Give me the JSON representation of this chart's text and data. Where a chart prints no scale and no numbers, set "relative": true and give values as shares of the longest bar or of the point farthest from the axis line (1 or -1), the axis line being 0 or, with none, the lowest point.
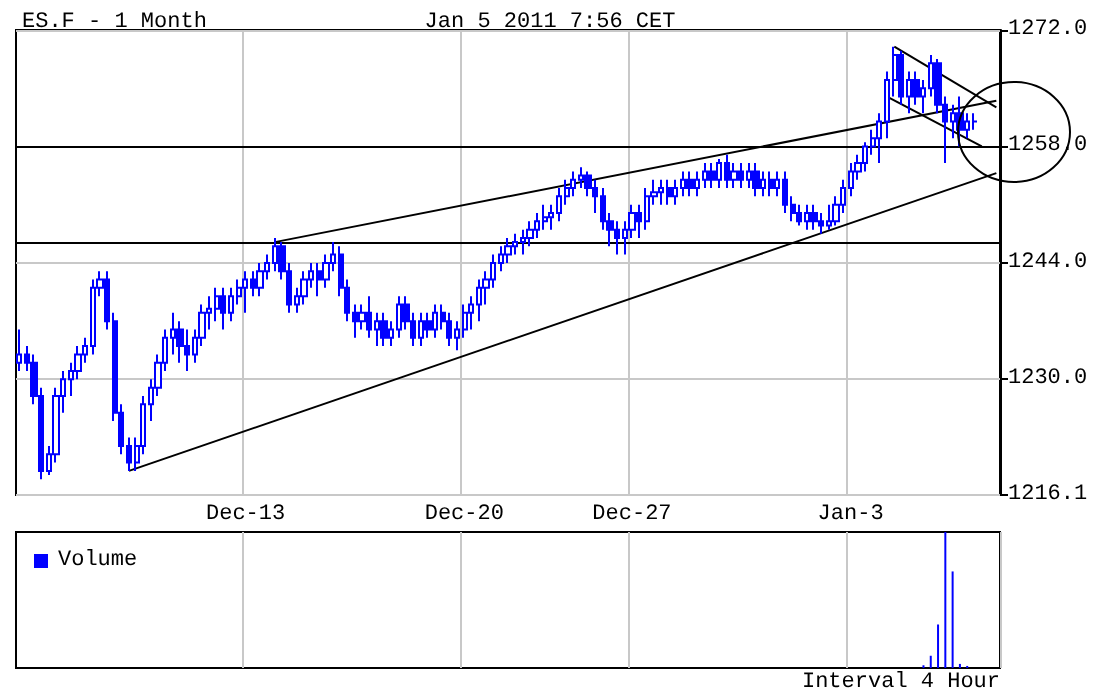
{
  "chart_data": [
    {
      "type": "candlestick",
      "title": "ES.F - 1 Month",
      "subtitle": "Jan 5 2011 7:56 CET",
      "categories": [
        null,
        null,
        null,
        null,
        null,
        null,
        null,
        null,
        null,
        null,
        null,
        null,
        null,
        null,
        null,
        null,
        null,
        null,
        null,
        null,
        null,
        null,
        null,
        null,
        null,
        null,
        null,
        null,
        null,
        null,
        null,
        null,
        null,
        null,
        null,
        null,
        null,
        null,
        null,
        null,
        null,
        null,
        null,
        null,
        null,
        null,
        null,
        null,
        null,
        null,
        null,
        null,
        null,
        null,
        null,
        null,
        null,
        null,
        null,
        null,
        null,
        null,
        null,
        null,
        null,
        null,
        null,
        null,
        null,
        null,
        null,
        null,
        null,
        null,
        null,
        null,
        null,
        null,
        null,
        null,
        null,
        null,
        null,
        null,
        null,
        null,
        null,
        null,
        null,
        null,
        null,
        null,
        null,
        null,
        null,
        null,
        null,
        null,
        null,
        null,
        null,
        null,
        null,
        null,
        null,
        null,
        null,
        null,
        null,
        null,
        null,
        null,
        null,
        null,
        null,
        null,
        null,
        null,
        null,
        null,
        null,
        null,
        null,
        null,
        null,
        null,
        null,
        null,
        null,
        null,
        null,
        null,
        null,
        null,
        null
      ],
      "tick_labels": "y",
      "ylim": [
        1216.1,
        1272
      ],
      "yticks": [
        {
          "value": 1216.1,
          "label": "1216.1"
        },
        {
          "value": 1230,
          "label": "1230.0"
        },
        {
          "value": 1244,
          "label": "1244.0"
        },
        {
          "value": 1258,
          "label": "1258.0"
        },
        {
          "value": 1272,
          "label": "1272.0"
        }
      ],
      "grid": true,
      "ref_lines": [
        {
          "axis": "y",
          "value": 1246.5,
          "color": "#000000"
        },
        {
          "axis": "y",
          "value": 1258,
          "color": "#000000"
        }
      ],
      "series": [
        {
          "type": "candlestick",
          "color": "#0000ff",
          "ohlc": [
            [
              1232,
              1236,
              1231,
              1233
            ],
            [
              1233,
              1234,
              1231,
              1232
            ],
            [
              1232,
              1233,
              1227,
              1228
            ],
            [
              1228,
              1229,
              1218,
              1219
            ],
            [
              1219,
              1222,
              1218.5,
              1221
            ],
            [
              1221,
              1229,
              1220,
              1228
            ],
            [
              1228,
              1231,
              1226,
              1230
            ],
            [
              1230,
              1232,
              1228,
              1231
            ],
            [
              1231,
              1234,
              1230,
              1233
            ],
            [
              1233,
              1235,
              1232,
              1234
            ],
            [
              1234,
              1242,
              1233,
              1241
            ],
            [
              1241,
              1243,
              1240,
              1242
            ],
            [
              1242,
              1243,
              1236,
              1237
            ],
            [
              1237,
              1238,
              1225,
              1226
            ],
            [
              1226,
              1227,
              1221,
              1222
            ],
            [
              1222,
              1223,
              1219,
              1220
            ],
            [
              1220,
              1223,
              1219,
              1222
            ],
            [
              1222,
              1228,
              1221,
              1227
            ],
            [
              1227,
              1230,
              1225,
              1229
            ],
            [
              1229,
              1233,
              1228,
              1232
            ],
            [
              1232,
              1236,
              1231,
              1235
            ],
            [
              1235,
              1238,
              1233,
              1236
            ],
            [
              1236,
              1237,
              1232,
              1234
            ],
            [
              1234,
              1236,
              1231,
              1233
            ],
            [
              1233,
              1236,
              1232,
              1235
            ],
            [
              1235,
              1239,
              1234,
              1238
            ],
            [
              1238,
              1240,
              1236,
              1238.5
            ],
            [
              1238.5,
              1241,
              1237,
              1240
            ],
            [
              1240,
              1241,
              1236,
              1238
            ],
            [
              1238,
              1241,
              1237,
              1240
            ],
            [
              1240,
              1242,
              1239,
              1241
            ],
            [
              1241,
              1243,
              1238,
              1242
            ],
            [
              1242,
              1243,
              1240,
              1241
            ],
            [
              1241,
              1244,
              1240,
              1243
            ],
            [
              1243,
              1245,
              1242,
              1244
            ],
            [
              1244,
              1247,
              1243,
              1246
            ],
            [
              1246,
              1246.5,
              1242,
              1243
            ],
            [
              1243,
              1244,
              1238,
              1239
            ],
            [
              1239,
              1241,
              1238,
              1240
            ],
            [
              1240,
              1243,
              1239,
              1242
            ],
            [
              1242,
              1244,
              1241,
              1243
            ],
            [
              1243,
              1244,
              1240,
              1242
            ],
            [
              1242,
              1245,
              1241,
              1244
            ],
            [
              1244,
              1246.5,
              1243,
              1245
            ],
            [
              1245,
              1246,
              1240,
              1241
            ],
            [
              1241,
              1242,
              1237,
              1238
            ],
            [
              1238,
              1239,
              1235,
              1237
            ],
            [
              1237,
              1239,
              1236,
              1238
            ],
            [
              1238,
              1240,
              1235,
              1236
            ],
            [
              1236,
              1238,
              1234,
              1237
            ],
            [
              1237,
              1238,
              1234,
              1235
            ],
            [
              1235,
              1237,
              1234,
              1236
            ],
            [
              1236,
              1240,
              1235,
              1239
            ],
            [
              1239,
              1240,
              1236,
              1237
            ],
            [
              1237,
              1238,
              1234,
              1235
            ],
            [
              1235,
              1238,
              1234,
              1237
            ],
            [
              1237,
              1238,
              1235,
              1236
            ],
            [
              1236,
              1239,
              1235,
              1238
            ],
            [
              1238,
              1239,
              1236,
              1237
            ],
            [
              1237,
              1238,
              1234,
              1235
            ],
            [
              1235,
              1237,
              1233.5,
              1236
            ],
            [
              1236,
              1239,
              1235,
              1238
            ],
            [
              1238,
              1240,
              1236,
              1239
            ],
            [
              1239,
              1242,
              1237,
              1241
            ],
            [
              1241,
              1243,
              1239,
              1242
            ],
            [
              1242,
              1245,
              1241,
              1244
            ],
            [
              1244,
              1246,
              1243,
              1245
            ],
            [
              1245,
              1247,
              1244,
              1246
            ],
            [
              1246,
              1247.5,
              1245,
              1246.5
            ],
            [
              1246.5,
              1248,
              1245,
              1247
            ],
            [
              1247,
              1249,
              1246,
              1248
            ],
            [
              1248,
              1250,
              1247,
              1249
            ],
            [
              1249,
              1251,
              1248,
              1249.5
            ],
            [
              1249.5,
              1251,
              1248,
              1250
            ],
            [
              1250,
              1253,
              1249,
              1252
            ],
            [
              1252,
              1254,
              1251,
              1253
            ],
            [
              1253,
              1255,
              1252,
              1254
            ],
            [
              1254,
              1255.5,
              1253,
              1254.5
            ],
            [
              1254.5,
              1255,
              1252,
              1253
            ],
            [
              1253,
              1254,
              1250,
              1252
            ],
            [
              1252,
              1253,
              1248,
              1249
            ],
            [
              1249,
              1250,
              1246,
              1248
            ],
            [
              1248,
              1249,
              1245,
              1247
            ],
            [
              1247,
              1249,
              1245,
              1248
            ],
            [
              1248,
              1251,
              1247,
              1250
            ],
            [
              1250,
              1251,
              1247,
              1249
            ],
            [
              1249,
              1253,
              1248,
              1252
            ],
            [
              1252,
              1254,
              1251,
              1252.5
            ],
            [
              1252.5,
              1254,
              1251,
              1253
            ],
            [
              1253,
              1254,
              1251,
              1252
            ],
            [
              1252,
              1254,
              1251,
              1253
            ],
            [
              1253,
              1255,
              1252,
              1254
            ],
            [
              1254,
              1255,
              1252,
              1253
            ],
            [
              1253,
              1255,
              1252,
              1254
            ],
            [
              1254,
              1256,
              1253,
              1255
            ],
            [
              1255,
              1256,
              1253,
              1254
            ],
            [
              1254,
              1256.5,
              1253,
              1256
            ],
            [
              1256,
              1257,
              1253,
              1254
            ],
            [
              1254,
              1256,
              1253,
              1255
            ],
            [
              1255,
              1256,
              1253,
              1254
            ],
            [
              1254,
              1256,
              1253,
              1255
            ],
            [
              1255,
              1256,
              1252,
              1253
            ],
            [
              1253,
              1255,
              1252,
              1254
            ],
            [
              1254,
              1255,
              1252,
              1253
            ],
            [
              1253,
              1255,
              1252,
              1254
            ],
            [
              1254,
              1255,
              1250,
              1251
            ],
            [
              1251,
              1252,
              1249,
              1250
            ],
            [
              1250,
              1251,
              1248.5,
              1249
            ],
            [
              1249,
              1251,
              1248,
              1250
            ],
            [
              1250,
              1251,
              1248,
              1249
            ],
            [
              1249,
              1250,
              1247.5,
              1248.5
            ],
            [
              1248.5,
              1251,
              1248,
              1249
            ],
            [
              1249,
              1252,
              1248.5,
              1251
            ],
            [
              1251,
              1254,
              1250,
              1253
            ],
            [
              1253,
              1256,
              1252,
              1255
            ],
            [
              1255,
              1257,
              1254,
              1256
            ],
            [
              1256,
              1258.5,
              1255,
              1258
            ],
            [
              1258,
              1260,
              1257,
              1259
            ],
            [
              1259,
              1262,
              1256,
              1261
            ],
            [
              1261,
              1267,
              1259,
              1266
            ],
            [
              1266,
              1270,
              1264,
              1269
            ],
            [
              1269,
              1269.5,
              1263,
              1264
            ],
            [
              1264,
              1267,
              1262,
              1266
            ],
            [
              1266,
              1267,
              1263,
              1264
            ],
            [
              1264,
              1266,
              1262,
              1265
            ],
            [
              1265,
              1269,
              1264,
              1268
            ],
            [
              1268,
              1268.5,
              1262,
              1263
            ],
            [
              1263,
              1264,
              1256,
              1261
            ],
            [
              1261,
              1263,
              1259,
              1262
            ],
            [
              1262,
              1264,
              1258,
              1260
            ],
            [
              1260,
              1262,
              1259,
              1261
            ],
            [
              1261,
              1262,
              1260,
              1261
            ],
            null,
            null,
            null
          ]
        },
        {
          "type": "line",
          "color": "#000000",
          "values": [
            null,
            null,
            null,
            null,
            null,
            null,
            null,
            null,
            null,
            null,
            null,
            null,
            null,
            null,
            null,
            1219,
            null,
            null,
            null,
            null,
            null,
            null,
            null,
            null,
            null,
            null,
            null,
            null,
            null,
            null,
            null,
            null,
            null,
            null,
            null,
            null,
            null,
            null,
            null,
            null,
            null,
            null,
            null,
            null,
            null,
            null,
            null,
            null,
            null,
            null,
            null,
            null,
            null,
            null,
            null,
            null,
            null,
            null,
            null,
            null,
            null,
            null,
            null,
            null,
            null,
            null,
            null,
            null,
            null,
            null,
            null,
            null,
            null,
            null,
            null,
            null,
            null,
            null,
            null,
            null,
            null,
            null,
            null,
            null,
            null,
            null,
            null,
            null,
            null,
            null,
            null,
            null,
            null,
            null,
            null,
            null,
            null,
            null,
            null,
            null,
            null,
            null,
            null,
            null,
            null,
            null,
            null,
            null,
            null,
            null,
            null,
            null,
            null,
            null,
            null,
            null,
            null,
            null,
            null,
            null,
            null,
            null,
            null,
            null,
            null,
            null,
            null,
            null,
            null,
            null,
            null,
            null,
            null,
            null,
            1254.8
          ]
        },
        {
          "type": "line",
          "color": "#000000",
          "values": [
            null,
            null,
            null,
            null,
            null,
            null,
            null,
            null,
            null,
            null,
            null,
            null,
            null,
            null,
            null,
            null,
            null,
            null,
            null,
            null,
            null,
            null,
            null,
            null,
            null,
            null,
            null,
            null,
            null,
            null,
            null,
            null,
            null,
            null,
            null,
            1246.5,
            null,
            null,
            null,
            null,
            null,
            null,
            null,
            null,
            null,
            null,
            null,
            null,
            null,
            null,
            null,
            null,
            null,
            null,
            null,
            null,
            null,
            null,
            null,
            null,
            null,
            null,
            null,
            null,
            null,
            null,
            null,
            null,
            null,
            null,
            null,
            null,
            null,
            null,
            null,
            null,
            null,
            null,
            null,
            null,
            null,
            null,
            null,
            null,
            null,
            null,
            null,
            null,
            null,
            null,
            null,
            null,
            null,
            null,
            null,
            null,
            null,
            null,
            null,
            null,
            null,
            null,
            null,
            null,
            null,
            null,
            null,
            null,
            null,
            null,
            null,
            null,
            null,
            null,
            null,
            null,
            null,
            null,
            null,
            null,
            null,
            null,
            null,
            null,
            null,
            null,
            null,
            null,
            null,
            null,
            null,
            null,
            null,
            null,
            1263.5
          ]
        },
        {
          "type": "line",
          "color": "#000000",
          "values": [
            null,
            null,
            null,
            null,
            null,
            null,
            null,
            null,
            null,
            null,
            null,
            null,
            null,
            null,
            null,
            null,
            null,
            null,
            null,
            null,
            null,
            null,
            null,
            null,
            null,
            null,
            null,
            null,
            null,
            null,
            null,
            null,
            null,
            null,
            null,
            null,
            null,
            null,
            null,
            null,
            null,
            null,
            null,
            null,
            null,
            null,
            null,
            null,
            null,
            null,
            null,
            null,
            null,
            null,
            null,
            null,
            null,
            null,
            null,
            null,
            null,
            null,
            null,
            null,
            null,
            null,
            null,
            null,
            null,
            null,
            null,
            null,
            null,
            null,
            null,
            null,
            null,
            null,
            null,
            null,
            null,
            null,
            null,
            null,
            null,
            null,
            null,
            null,
            null,
            null,
            null,
            null,
            null,
            null,
            null,
            null,
            null,
            null,
            null,
            null,
            null,
            null,
            null,
            null,
            null,
            null,
            null,
            null,
            null,
            null,
            null,
            null,
            null,
            null,
            null,
            null,
            null,
            null,
            null,
            null,
            1270,
            null,
            null,
            null,
            null,
            null,
            null,
            null,
            null,
            null,
            null,
            null,
            null,
            null,
            1262.7
          ]
        },
        {
          "type": "line",
          "color": "#000000",
          "values": [
            null,
            null,
            null,
            null,
            null,
            null,
            null,
            null,
            null,
            null,
            null,
            null,
            null,
            null,
            null,
            null,
            null,
            null,
            null,
            null,
            null,
            null,
            null,
            null,
            null,
            null,
            null,
            null,
            null,
            null,
            null,
            null,
            null,
            null,
            null,
            null,
            null,
            null,
            null,
            null,
            null,
            null,
            null,
            null,
            null,
            null,
            null,
            null,
            null,
            null,
            null,
            null,
            null,
            null,
            null,
            null,
            null,
            null,
            null,
            null,
            null,
            null,
            null,
            null,
            null,
            null,
            null,
            null,
            null,
            null,
            null,
            null,
            null,
            null,
            null,
            null,
            null,
            null,
            null,
            null,
            null,
            null,
            null,
            null,
            null,
            null,
            null,
            null,
            null,
            null,
            null,
            null,
            null,
            null,
            null,
            null,
            null,
            null,
            null,
            null,
            null,
            null,
            null,
            null,
            null,
            null,
            null,
            null,
            null,
            null,
            null,
            null,
            null,
            null,
            null,
            null,
            null,
            null,
            null,
            1264,
            null,
            null,
            null,
            null,
            null,
            null,
            null,
            null,
            null,
            null,
            null,
            null,
            1258,
            null,
            null
          ]
        }
      ]
    },
    {
      "type": "bar",
      "relative": true,
      "tick_labels": "x",
      "grid": "x",
      "legend": "top left",
      "annotations": [
        "Interval 4 Hour"
      ],
      "categories": [
        null,
        null,
        null,
        null,
        null,
        null,
        null,
        null,
        null,
        null,
        null,
        null,
        null,
        null,
        null,
        null,
        null,
        null,
        null,
        null,
        null,
        null,
        null,
        null,
        null,
        null,
        null,
        null,
        null,
        null,
        null,
        "Dec-13",
        null,
        null,
        null,
        null,
        null,
        null,
        null,
        null,
        null,
        null,
        null,
        null,
        null,
        null,
        null,
        null,
        null,
        null,
        null,
        null,
        null,
        null,
        null,
        null,
        null,
        null,
        null,
        null,
        null,
        "Dec-20",
        null,
        null,
        null,
        null,
        null,
        null,
        null,
        null,
        null,
        null,
        null,
        null,
        null,
        null,
        null,
        null,
        null,
        null,
        null,
        null,
        null,
        null,
        "Dec-27",
        null,
        null,
        null,
        null,
        null,
        null,
        null,
        null,
        null,
        null,
        null,
        null,
        null,
        null,
        null,
        null,
        null,
        null,
        null,
        null,
        null,
        null,
        null,
        null,
        null,
        null,
        null,
        null,
        null,
        "Jan-3",
        null,
        null,
        null,
        null,
        null,
        null,
        null,
        null,
        null,
        null,
        null,
        null,
        null,
        null,
        null,
        null,
        null,
        null,
        null,
        null
      ],
      "series": [
        {
          "name": "Volume",
          "color": "#0000ff",
          "values": [
            null,
            null,
            null,
            null,
            null,
            null,
            null,
            null,
            null,
            null,
            null,
            null,
            null,
            null,
            null,
            null,
            null,
            null,
            null,
            null,
            null,
            null,
            null,
            null,
            null,
            null,
            null,
            null,
            null,
            null,
            null,
            null,
            null,
            null,
            null,
            null,
            null,
            null,
            null,
            null,
            null,
            null,
            null,
            null,
            null,
            null,
            null,
            null,
            null,
            null,
            null,
            null,
            null,
            null,
            null,
            null,
            null,
            null,
            null,
            null,
            null,
            null,
            null,
            null,
            null,
            null,
            null,
            null,
            null,
            null,
            null,
            null,
            null,
            null,
            null,
            null,
            null,
            null,
            null,
            null,
            null,
            null,
            null,
            null,
            null,
            null,
            null,
            null,
            null,
            null,
            null,
            null,
            null,
            null,
            null,
            null,
            null,
            null,
            null,
            null,
            null,
            null,
            null,
            null,
            null,
            null,
            null,
            null,
            null,
            null,
            null,
            null,
            null,
            null,
            null,
            null,
            null,
            null,
            null,
            null,
            null,
            null,
            null,
            null,
            0.02,
            0.09,
            0.32,
            1,
            0.71,
            0.03,
            0.015,
            null,
            null,
            null,
            null
          ]
        }
      ]
    }
  ]
}
